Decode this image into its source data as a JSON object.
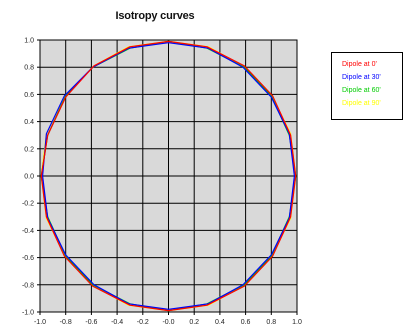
{
  "chart_data": {
    "type": "line",
    "title": "Isotropy curves",
    "xlabel": "",
    "ylabel": "",
    "xlim": [
      -1.0,
      1.0
    ],
    "ylim": [
      -1.0,
      1.0
    ],
    "xticks": [
      "-1.0",
      "-0.8",
      "-0.6",
      "-0.4",
      "-0.2",
      "-0.0",
      "0.2",
      "0.4",
      "0.6",
      "0.8",
      "1.0"
    ],
    "yticks": [
      "1.0",
      "0.8",
      "0.6",
      "0.4",
      "0.2",
      "0.0",
      "-0.2",
      "-0.4",
      "-0.6",
      "-0.8",
      "-1.0"
    ],
    "grid": true,
    "legend_position": "right",
    "series": [
      {
        "name": "Dipole at 0'",
        "color": "#ff0000",
        "points": [
          [
            0.99,
            0.0
          ],
          [
            0.95,
            0.3
          ],
          [
            0.81,
            0.59
          ],
          [
            0.59,
            0.81
          ],
          [
            0.3,
            0.95
          ],
          [
            0.0,
            0.99
          ],
          [
            -0.3,
            0.95
          ],
          [
            -0.58,
            0.81
          ],
          [
            -0.8,
            0.58
          ],
          [
            -0.94,
            0.3
          ],
          [
            -0.99,
            0.0
          ],
          [
            -0.95,
            -0.3
          ],
          [
            -0.81,
            -0.59
          ],
          [
            -0.59,
            -0.81
          ],
          [
            -0.3,
            -0.95
          ],
          [
            0.0,
            -0.99
          ],
          [
            0.3,
            -0.95
          ],
          [
            0.59,
            -0.81
          ],
          [
            0.81,
            -0.59
          ],
          [
            0.95,
            -0.3
          ],
          [
            0.99,
            0.0
          ]
        ]
      },
      {
        "name": "Dipole at 30'",
        "color": "#0000ff",
        "points": [
          [
            0.98,
            0.0
          ],
          [
            0.94,
            0.31
          ],
          [
            0.8,
            0.58
          ],
          [
            0.58,
            0.8
          ],
          [
            0.31,
            0.94
          ],
          [
            0.0,
            0.98
          ],
          [
            -0.31,
            0.94
          ],
          [
            -0.59,
            0.8
          ],
          [
            -0.81,
            0.59
          ],
          [
            -0.95,
            0.31
          ],
          [
            -0.98,
            0.0
          ],
          [
            -0.94,
            -0.31
          ],
          [
            -0.8,
            -0.58
          ],
          [
            -0.58,
            -0.8
          ],
          [
            -0.31,
            -0.94
          ],
          [
            0.0,
            -0.98
          ],
          [
            0.31,
            -0.94
          ],
          [
            0.58,
            -0.8
          ],
          [
            0.8,
            -0.58
          ],
          [
            0.94,
            -0.31
          ],
          [
            0.98,
            0.0
          ]
        ]
      },
      {
        "name": "Dipole at 60'",
        "color": "#00cc00",
        "points": [
          [
            0.99,
            0.0
          ],
          [
            0.94,
            0.3
          ],
          [
            0.8,
            0.59
          ],
          [
            0.59,
            0.8
          ],
          [
            0.3,
            0.94
          ],
          [
            0.0,
            0.99
          ],
          [
            -0.3,
            0.94
          ],
          [
            -0.59,
            0.8
          ],
          [
            -0.8,
            0.59
          ],
          [
            -0.94,
            0.3
          ],
          [
            -0.99,
            0.0
          ],
          [
            -0.94,
            -0.3
          ],
          [
            -0.8,
            -0.59
          ],
          [
            -0.59,
            -0.8
          ],
          [
            -0.3,
            -0.94
          ],
          [
            0.0,
            -0.99
          ],
          [
            0.3,
            -0.94
          ],
          [
            0.59,
            -0.8
          ],
          [
            0.8,
            -0.59
          ],
          [
            0.94,
            -0.3
          ],
          [
            0.99,
            0.0
          ]
        ]
      },
      {
        "name": "Dipole at 90'",
        "color": "#ffff00",
        "points": [
          [
            0.99,
            0.0
          ],
          [
            0.95,
            0.31
          ],
          [
            0.81,
            0.58
          ],
          [
            0.58,
            0.81
          ],
          [
            0.31,
            0.95
          ],
          [
            0.0,
            0.99
          ],
          [
            -0.31,
            0.95
          ],
          [
            -0.58,
            0.81
          ],
          [
            -0.81,
            0.58
          ],
          [
            -0.95,
            0.31
          ],
          [
            -0.99,
            0.0
          ],
          [
            -0.95,
            -0.31
          ],
          [
            -0.81,
            -0.58
          ],
          [
            -0.58,
            -0.81
          ],
          [
            -0.31,
            -0.95
          ],
          [
            0.0,
            -0.99
          ],
          [
            0.31,
            -0.95
          ],
          [
            0.58,
            -0.81
          ],
          [
            0.81,
            -0.58
          ],
          [
            0.95,
            -0.31
          ],
          [
            0.99,
            0.0
          ]
        ]
      }
    ]
  }
}
